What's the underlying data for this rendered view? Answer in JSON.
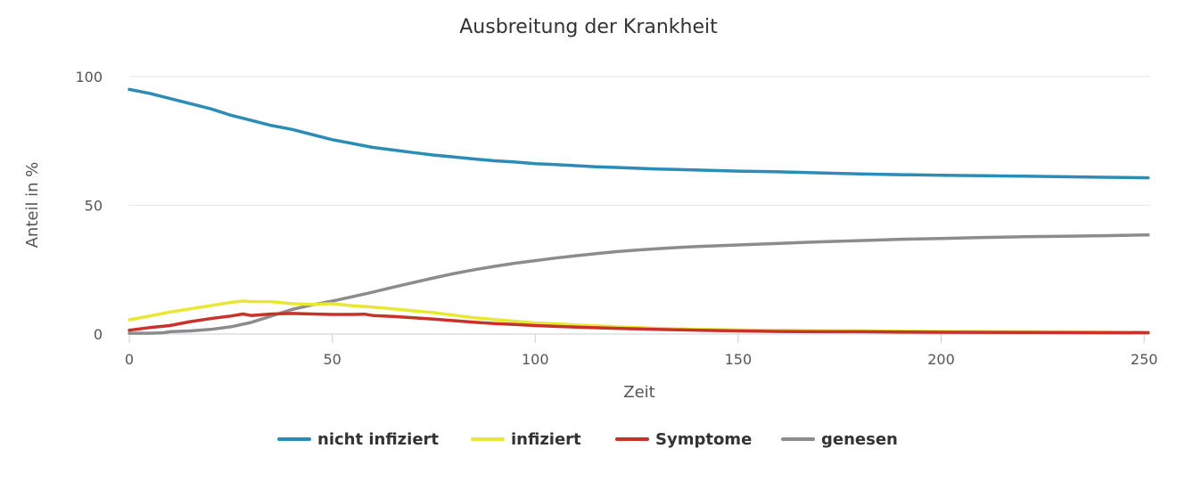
{
  "chart_data": {
    "type": "line",
    "title": "Ausbreitung der Krankheit",
    "xlabel": "Zeit",
    "ylabel": "Anteil in %",
    "xlim": [
      0,
      250
    ],
    "ylim": [
      0,
      100
    ],
    "xticks": [
      "0",
      "50",
      "100",
      "150",
      "200",
      "250"
    ],
    "yticks": [
      "0",
      "50",
      "100"
    ],
    "grid": "horizontal",
    "legend_position": "bottom",
    "series": [
      {
        "name": "nicht infiziert",
        "color": "#2b8cb6",
        "points": [
          [
            0,
            95
          ],
          [
            5,
            93.5
          ],
          [
            10,
            91.5
          ],
          [
            15,
            89.5
          ],
          [
            20,
            87.5
          ],
          [
            25,
            85
          ],
          [
            30,
            83
          ],
          [
            35,
            81
          ],
          [
            40,
            79.5
          ],
          [
            45,
            77.5
          ],
          [
            50,
            75.5
          ],
          [
            55,
            74
          ],
          [
            60,
            72.5
          ],
          [
            65,
            71.5
          ],
          [
            70,
            70.5
          ],
          [
            75,
            69.5
          ],
          [
            80,
            68.8
          ],
          [
            85,
            68
          ],
          [
            90,
            67.3
          ],
          [
            95,
            66.8
          ],
          [
            100,
            66.2
          ],
          [
            105,
            65.8
          ],
          [
            110,
            65.4
          ],
          [
            115,
            65
          ],
          [
            120,
            64.7
          ],
          [
            125,
            64.4
          ],
          [
            130,
            64.1
          ],
          [
            135,
            63.9
          ],
          [
            140,
            63.7
          ],
          [
            145,
            63.5
          ],
          [
            150,
            63.3
          ],
          [
            160,
            63
          ],
          [
            170,
            62.6
          ],
          [
            180,
            62.2
          ],
          [
            190,
            61.9
          ],
          [
            200,
            61.7
          ],
          [
            210,
            61.5
          ],
          [
            220,
            61.3
          ],
          [
            230,
            61.1
          ],
          [
            240,
            60.9
          ],
          [
            251,
            60.7
          ]
        ]
      },
      {
        "name": "infiziert",
        "color": "#e8e833",
        "points": [
          [
            0,
            5.5
          ],
          [
            5,
            7
          ],
          [
            10,
            8.5
          ],
          [
            15,
            9.8
          ],
          [
            20,
            11
          ],
          [
            25,
            12.3
          ],
          [
            28,
            12.8
          ],
          [
            30,
            12.6
          ],
          [
            35,
            12.6
          ],
          [
            40,
            11.8
          ],
          [
            45,
            11.5
          ],
          [
            50,
            11.8
          ],
          [
            55,
            11
          ],
          [
            60,
            10.5
          ],
          [
            65,
            9.8
          ],
          [
            70,
            9
          ],
          [
            75,
            8.3
          ],
          [
            80,
            7.3
          ],
          [
            85,
            6.3
          ],
          [
            90,
            5.6
          ],
          [
            95,
            5
          ],
          [
            100,
            4.3
          ],
          [
            105,
            4
          ],
          [
            110,
            3.5
          ],
          [
            115,
            3.2
          ],
          [
            120,
            2.8
          ],
          [
            125,
            2.5
          ],
          [
            130,
            2.2
          ],
          [
            135,
            2
          ],
          [
            140,
            1.8
          ],
          [
            150,
            1.6
          ],
          [
            160,
            1.5
          ],
          [
            170,
            1.3
          ],
          [
            180,
            1.2
          ],
          [
            190,
            1.1
          ],
          [
            200,
            1
          ],
          [
            220,
            0.9
          ],
          [
            251,
            0.8
          ]
        ]
      },
      {
        "name": "Symptome",
        "color": "#c8322a",
        "points": [
          [
            0,
            1.5
          ],
          [
            5,
            2.5
          ],
          [
            10,
            3.3
          ],
          [
            15,
            4.8
          ],
          [
            20,
            6
          ],
          [
            25,
            7
          ],
          [
            28,
            7.8
          ],
          [
            30,
            7.2
          ],
          [
            35,
            7.8
          ],
          [
            40,
            8
          ],
          [
            45,
            7.8
          ],
          [
            50,
            7.6
          ],
          [
            55,
            7.6
          ],
          [
            58,
            7.7
          ],
          [
            60,
            7.2
          ],
          [
            65,
            6.8
          ],
          [
            70,
            6.3
          ],
          [
            75,
            5.8
          ],
          [
            80,
            5.2
          ],
          [
            85,
            4.6
          ],
          [
            90,
            4.1
          ],
          [
            95,
            3.7
          ],
          [
            100,
            3.3
          ],
          [
            110,
            2.7
          ],
          [
            120,
            2.2
          ],
          [
            130,
            1.8
          ],
          [
            140,
            1.5
          ],
          [
            150,
            1.2
          ],
          [
            160,
            1
          ],
          [
            170,
            0.9
          ],
          [
            180,
            0.9
          ],
          [
            190,
            0.8
          ],
          [
            200,
            0.7
          ],
          [
            220,
            0.6
          ],
          [
            251,
            0.5
          ]
        ]
      },
      {
        "name": "genesen",
        "color": "#8c8c8c",
        "points": [
          [
            0,
            0.3
          ],
          [
            5,
            0.3
          ],
          [
            8,
            0.4
          ],
          [
            10,
            0.9
          ],
          [
            15,
            1.2
          ],
          [
            20,
            1.8
          ],
          [
            25,
            2.8
          ],
          [
            30,
            4.5
          ],
          [
            35,
            7
          ],
          [
            40,
            9.5
          ],
          [
            45,
            11.3
          ],
          [
            50,
            12.8
          ],
          [
            55,
            14.5
          ],
          [
            60,
            16.3
          ],
          [
            65,
            18.2
          ],
          [
            70,
            20
          ],
          [
            75,
            21.8
          ],
          [
            80,
            23.5
          ],
          [
            85,
            25
          ],
          [
            90,
            26.3
          ],
          [
            95,
            27.5
          ],
          [
            100,
            28.5
          ],
          [
            105,
            29.5
          ],
          [
            110,
            30.4
          ],
          [
            115,
            31.2
          ],
          [
            120,
            32
          ],
          [
            125,
            32.6
          ],
          [
            130,
            33.1
          ],
          [
            135,
            33.6
          ],
          [
            140,
            34
          ],
          [
            150,
            34.6
          ],
          [
            160,
            35.2
          ],
          [
            170,
            35.8
          ],
          [
            180,
            36.3
          ],
          [
            190,
            36.8
          ],
          [
            200,
            37.1
          ],
          [
            210,
            37.5
          ],
          [
            220,
            37.8
          ],
          [
            230,
            38
          ],
          [
            240,
            38.2
          ],
          [
            251,
            38.5
          ]
        ]
      }
    ]
  }
}
